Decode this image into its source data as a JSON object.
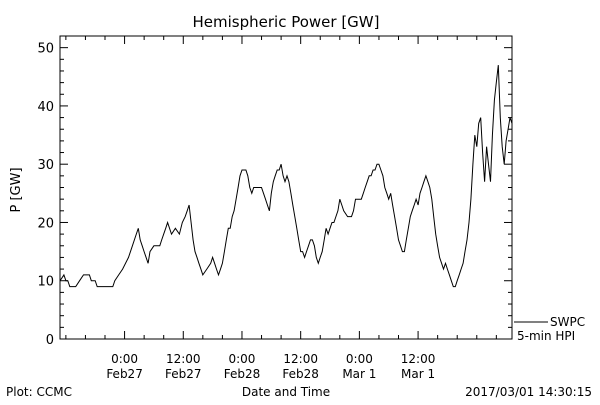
{
  "chart_data": {
    "type": "line",
    "title": "Hemispheric Power [GW]",
    "ylabel": "P [GW]",
    "xlabel": "Date and Time",
    "ylim": [
      0,
      52
    ],
    "yticks": [
      0,
      10,
      20,
      30,
      40,
      50
    ],
    "xlim": [
      -6.6,
      39.6
    ],
    "xticks": [
      {
        "x": 0,
        "time": "0:00",
        "date": "Feb27"
      },
      {
        "x": 6,
        "time": "12:00",
        "date": "Feb27"
      },
      {
        "x": 12,
        "time": "0:00",
        "date": "Feb28"
      },
      {
        "x": 18,
        "time": "12:00",
        "date": "Feb28"
      },
      {
        "x": 24,
        "time": "0:00",
        "date": "Mar 1"
      },
      {
        "x": 30,
        "time": "12:00",
        "date": "Mar 1"
      }
    ],
    "x_units": "hours relative to Feb27 0:00 (2-hour tick spacing)",
    "series": [
      {
        "name": "HPI",
        "color": "#000000",
        "points": [
          [
            -6.6,
            10
          ],
          [
            -6.4,
            10.5
          ],
          [
            -6.2,
            11
          ],
          [
            -6.0,
            10
          ],
          [
            -5.8,
            10
          ],
          [
            -5.6,
            9
          ],
          [
            -5.0,
            9
          ],
          [
            -4.6,
            10
          ],
          [
            -4.2,
            11
          ],
          [
            -3.6,
            11
          ],
          [
            -3.4,
            10
          ],
          [
            -3.0,
            10
          ],
          [
            -2.8,
            9
          ],
          [
            -1.2,
            9
          ],
          [
            -1.0,
            10
          ],
          [
            -0.6,
            11
          ],
          [
            -0.2,
            12
          ],
          [
            0.4,
            14
          ],
          [
            0.8,
            16
          ],
          [
            1.2,
            18
          ],
          [
            1.4,
            19
          ],
          [
            1.6,
            17
          ],
          [
            1.8,
            16
          ],
          [
            2.0,
            15
          ],
          [
            2.2,
            14
          ],
          [
            2.4,
            13
          ],
          [
            2.6,
            15
          ],
          [
            3.0,
            16
          ],
          [
            3.6,
            16
          ],
          [
            3.8,
            17
          ],
          [
            4.0,
            18
          ],
          [
            4.2,
            19
          ],
          [
            4.4,
            20
          ],
          [
            4.8,
            18
          ],
          [
            5.2,
            19
          ],
          [
            5.6,
            18
          ],
          [
            5.9,
            20
          ],
          [
            6.2,
            21
          ],
          [
            6.4,
            22
          ],
          [
            6.6,
            23
          ],
          [
            6.8,
            20
          ],
          [
            7.0,
            17
          ],
          [
            7.2,
            15
          ],
          [
            7.4,
            14
          ],
          [
            7.6,
            13
          ],
          [
            7.8,
            12
          ],
          [
            8.0,
            11
          ],
          [
            8.4,
            12
          ],
          [
            8.8,
            13
          ],
          [
            9.0,
            14
          ],
          [
            9.2,
            13
          ],
          [
            9.4,
            12
          ],
          [
            9.6,
            11
          ],
          [
            9.8,
            12
          ],
          [
            10.0,
            13
          ],
          [
            10.2,
            15
          ],
          [
            10.4,
            17
          ],
          [
            10.6,
            19
          ],
          [
            10.8,
            19
          ],
          [
            11.0,
            21
          ],
          [
            11.2,
            22
          ],
          [
            11.4,
            24
          ],
          [
            11.6,
            26
          ],
          [
            11.8,
            28
          ],
          [
            12.0,
            29
          ],
          [
            12.4,
            29
          ],
          [
            12.6,
            28
          ],
          [
            12.8,
            26
          ],
          [
            13.0,
            25
          ],
          [
            13.2,
            26
          ],
          [
            14.0,
            26
          ],
          [
            14.2,
            25
          ],
          [
            14.4,
            24
          ],
          [
            14.6,
            23
          ],
          [
            14.8,
            22
          ],
          [
            15.0,
            25
          ],
          [
            15.2,
            27
          ],
          [
            15.4,
            28
          ],
          [
            15.6,
            29
          ],
          [
            15.8,
            29
          ],
          [
            16.0,
            30
          ],
          [
            16.2,
            28
          ],
          [
            16.4,
            27
          ],
          [
            16.6,
            28
          ],
          [
            16.8,
            27
          ],
          [
            17.0,
            25
          ],
          [
            17.2,
            23
          ],
          [
            17.4,
            21
          ],
          [
            17.6,
            19
          ],
          [
            17.8,
            17
          ],
          [
            18.0,
            15
          ],
          [
            18.2,
            15
          ],
          [
            18.4,
            14
          ],
          [
            18.6,
            15
          ],
          [
            18.8,
            16
          ],
          [
            19.0,
            17
          ],
          [
            19.2,
            17
          ],
          [
            19.4,
            16
          ],
          [
            19.6,
            14
          ],
          [
            19.8,
            13
          ],
          [
            20.0,
            14
          ],
          [
            20.2,
            15
          ],
          [
            20.4,
            17
          ],
          [
            20.6,
            19
          ],
          [
            20.8,
            18
          ],
          [
            21.0,
            19
          ],
          [
            21.2,
            20
          ],
          [
            21.4,
            20
          ],
          [
            21.6,
            21
          ],
          [
            21.8,
            22
          ],
          [
            22.0,
            24
          ],
          [
            22.2,
            23
          ],
          [
            22.4,
            22
          ],
          [
            22.8,
            21
          ],
          [
            23.2,
            21
          ],
          [
            23.4,
            22
          ],
          [
            23.6,
            24
          ],
          [
            24.2,
            24
          ],
          [
            24.4,
            25
          ],
          [
            24.6,
            26
          ],
          [
            24.8,
            27
          ],
          [
            25.0,
            28
          ],
          [
            25.2,
            28
          ],
          [
            25.4,
            29
          ],
          [
            25.6,
            29
          ],
          [
            25.8,
            30
          ],
          [
            26.0,
            30
          ],
          [
            26.2,
            29
          ],
          [
            26.4,
            28
          ],
          [
            26.6,
            26
          ],
          [
            26.8,
            25
          ],
          [
            27.0,
            24
          ],
          [
            27.2,
            25
          ],
          [
            27.4,
            23
          ],
          [
            27.6,
            21
          ],
          [
            27.8,
            19
          ],
          [
            28.0,
            17
          ],
          [
            28.2,
            16
          ],
          [
            28.4,
            15
          ],
          [
            28.6,
            15
          ],
          [
            28.8,
            17
          ],
          [
            29.0,
            19
          ],
          [
            29.2,
            21
          ],
          [
            29.4,
            22
          ],
          [
            29.6,
            23
          ],
          [
            29.8,
            24
          ],
          [
            30.0,
            23
          ],
          [
            30.2,
            25
          ],
          [
            30.4,
            26
          ],
          [
            30.6,
            27
          ],
          [
            30.8,
            28
          ],
          [
            31.0,
            27
          ],
          [
            31.2,
            26
          ],
          [
            31.4,
            24
          ],
          [
            31.6,
            21
          ],
          [
            31.8,
            18
          ],
          [
            32.0,
            16
          ],
          [
            32.2,
            14
          ],
          [
            32.4,
            13
          ],
          [
            32.6,
            12
          ],
          [
            32.8,
            13
          ],
          [
            33.0,
            12
          ],
          [
            33.2,
            11
          ],
          [
            33.4,
            10
          ],
          [
            33.6,
            9
          ],
          [
            33.8,
            9
          ],
          [
            34.0,
            10
          ],
          [
            34.2,
            11
          ],
          [
            34.4,
            12
          ],
          [
            34.6,
            13
          ],
          [
            34.8,
            15
          ],
          [
            35.0,
            17
          ],
          [
            35.2,
            20
          ],
          [
            35.4,
            24
          ],
          [
            35.6,
            30
          ],
          [
            35.8,
            35
          ],
          [
            36.0,
            33
          ],
          [
            36.2,
            37
          ],
          [
            36.4,
            38
          ],
          [
            36.6,
            32
          ],
          [
            36.8,
            27
          ],
          [
            37.0,
            33
          ],
          [
            37.2,
            30
          ],
          [
            37.4,
            27
          ],
          [
            37.6,
            35
          ],
          [
            37.8,
            41
          ],
          [
            38.0,
            44
          ],
          [
            38.2,
            47
          ],
          [
            38.4,
            38
          ],
          [
            38.6,
            33
          ],
          [
            38.8,
            30
          ],
          [
            39.0,
            34
          ],
          [
            39.2,
            36
          ],
          [
            39.4,
            38
          ],
          [
            39.6,
            37
          ]
        ]
      }
    ],
    "legend": {
      "line1": "SWPC",
      "line2": "5-min HPI",
      "placement": "bottom-right"
    }
  },
  "footer": {
    "left": "Plot: CCMC",
    "right": "2017/03/01  14:30:15"
  }
}
